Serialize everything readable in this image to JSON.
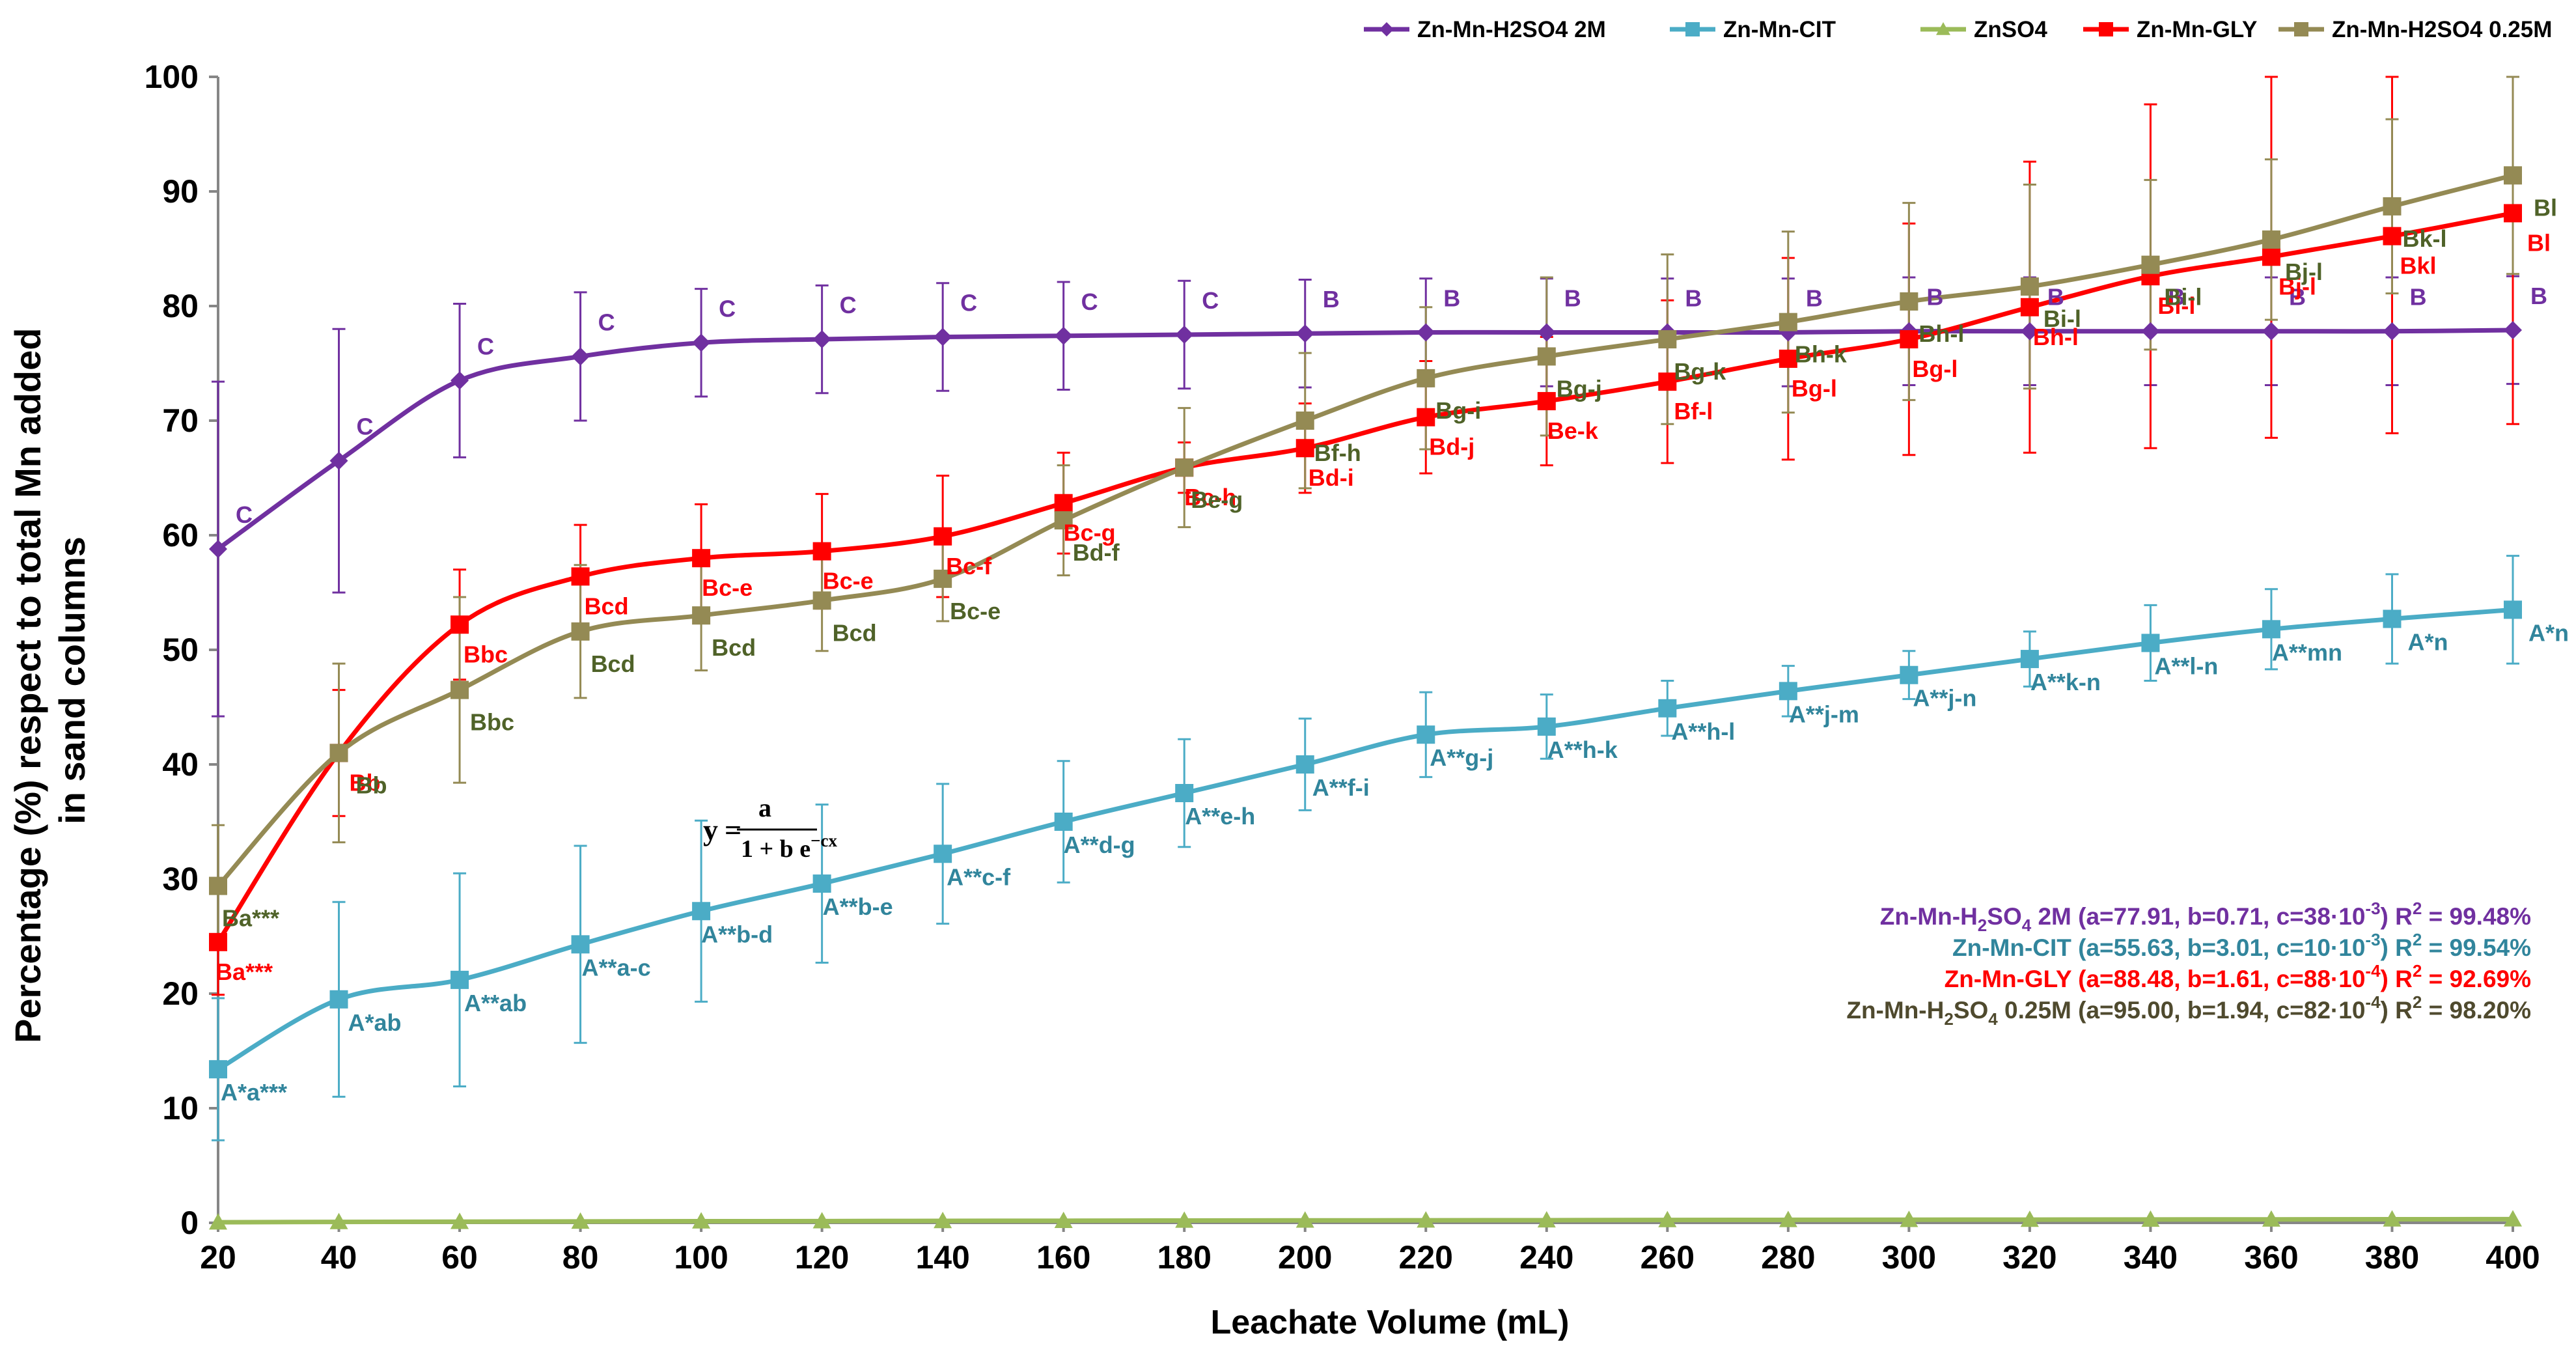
{
  "chart_data": {
    "type": "line",
    "ylabel_line1": "Percentage (%) respect to total Mn added",
    "ylabel_line2": "in sand columns",
    "xlabel": "Leachate Volume (mL)",
    "x": [
      20,
      40,
      60,
      80,
      100,
      120,
      140,
      160,
      180,
      200,
      220,
      240,
      260,
      280,
      300,
      320,
      340,
      360,
      380,
      400
    ],
    "xlim": [
      20,
      400
    ],
    "ylim": [
      0,
      100
    ],
    "yticks": [
      0,
      10,
      20,
      30,
      40,
      50,
      60,
      70,
      80,
      90,
      100
    ],
    "xticks": [
      20,
      40,
      60,
      80,
      100,
      120,
      140,
      160,
      180,
      200,
      220,
      240,
      260,
      280,
      300,
      320,
      340,
      360,
      380,
      400
    ],
    "legend_position": "top",
    "series": [
      {
        "name": "Zn-Mn-H2SO4 2M",
        "color": "#7030A0",
        "marker": "diamond",
        "values": [
          58.8,
          66.5,
          73.5,
          75.6,
          76.8,
          77.1,
          77.3,
          77.4,
          77.5,
          77.6,
          77.7,
          77.7,
          77.7,
          77.7,
          77.8,
          77.8,
          77.8,
          77.8,
          77.8,
          77.9
        ],
        "errors": [
          14.6,
          11.5,
          6.7,
          5.6,
          4.7,
          4.7,
          4.7,
          4.7,
          4.7,
          4.7,
          4.7,
          4.7,
          4.7,
          4.7,
          4.7,
          4.7,
          4.7,
          4.7,
          4.7,
          4.7
        ],
        "labels": [
          "C",
          "C",
          "C",
          "C",
          "C",
          "C",
          "C",
          "C",
          "C",
          "B",
          "B",
          "B",
          "B",
          "B",
          "B",
          "B",
          "B",
          "B",
          "B",
          "B"
        ]
      },
      {
        "name": "Zn-Mn-CIT",
        "color": "#4BACC6",
        "marker": "square",
        "values": [
          13.4,
          19.5,
          21.2,
          24.3,
          27.2,
          29.6,
          32.2,
          35.0,
          37.5,
          40.0,
          42.6,
          43.3,
          44.9,
          46.4,
          47.8,
          49.2,
          50.6,
          51.8,
          52.7,
          53.5
        ],
        "errors": [
          6.2,
          8.5,
          9.3,
          8.6,
          7.9,
          6.9,
          6.1,
          5.3,
          4.7,
          4.0,
          3.7,
          2.8,
          2.4,
          2.2,
          2.1,
          2.4,
          3.3,
          3.5,
          3.9,
          4.7
        ],
        "labels": [
          "A*a***",
          "A*ab",
          "A**ab",
          "A**a-c",
          "A**b-d",
          "A**b-e",
          "A**c-f",
          "A**d-g",
          "A**e-h",
          "A**f-i",
          "A**g-j",
          "A**h-k",
          "A**h-l",
          "A**j-m",
          "A**j-n",
          "A**k-n",
          "A**l-n",
          "A**mn",
          "A*n",
          "A*n"
        ]
      },
      {
        "name": "ZnSO4",
        "color": "#9BBB59",
        "marker": "triangle",
        "values": [
          0.05,
          0.08,
          0.1,
          0.12,
          0.14,
          0.15,
          0.17,
          0.18,
          0.2,
          0.21,
          0.22,
          0.23,
          0.25,
          0.26,
          0.27,
          0.28,
          0.29,
          0.3,
          0.31,
          0.32
        ],
        "errors": [
          0,
          0,
          0,
          0,
          0,
          0,
          0,
          0,
          0,
          0,
          0,
          0,
          0,
          0,
          0,
          0,
          0,
          0,
          0,
          0
        ],
        "labels": []
      },
      {
        "name": "Zn-Mn-GLY",
        "color": "#FF0000",
        "marker": "square",
        "values": [
          24.5,
          41.0,
          52.2,
          56.4,
          58.0,
          58.6,
          59.9,
          62.8,
          65.9,
          67.6,
          70.3,
          71.7,
          73.4,
          75.4,
          77.1,
          79.9,
          82.6,
          84.3,
          86.1,
          88.1
        ],
        "errors": [
          4.6,
          5.5,
          4.8,
          4.5,
          4.7,
          5.0,
          5.3,
          4.4,
          2.2,
          3.9,
          4.9,
          5.6,
          7.1,
          8.8,
          10.1,
          12.7,
          15.0,
          15.8,
          17.2,
          18.4
        ],
        "labels": [
          "Ba***",
          "Bb",
          "Bbc",
          "Bcd",
          "Bc-e",
          "Bc-e",
          "Bc-f",
          "Bc-g",
          "Bc-h",
          "Bd-i",
          "Bd-j",
          "Be-k",
          "Bf-l",
          "Bg-l",
          "Bg-l",
          "Bh-l",
          "Bi-l",
          "Bj-l",
          "Bkl",
          "Bl"
        ]
      },
      {
        "name": "Zn-Mn-H2SO4 0.25M",
        "color": "#948A54",
        "marker": "square",
        "values": [
          29.4,
          41.0,
          46.5,
          51.6,
          53.0,
          54.3,
          56.2,
          61.3,
          65.9,
          70.0,
          73.7,
          75.6,
          77.1,
          78.6,
          80.4,
          81.7,
          83.6,
          85.8,
          88.7,
          91.4
        ],
        "errors": [
          5.3,
          7.8,
          8.1,
          5.8,
          4.8,
          4.4,
          3.7,
          4.8,
          5.2,
          5.9,
          6.2,
          6.9,
          7.4,
          7.9,
          8.6,
          8.9,
          7.4,
          7.0,
          7.6,
          8.6
        ],
        "labels": [
          "Ba***",
          "Bb",
          "Bbc",
          "Bcd",
          "Bcd",
          "Bcd",
          "Bc-e",
          "Bd-f",
          "Be-g",
          "Bf-h",
          "Bg-i",
          "Bg-j",
          "Bg-k",
          "Bh-k",
          "Bh-l",
          "Bi-l",
          "Bi-l",
          "Bj-l",
          "Bk-l",
          "Bl"
        ]
      }
    ],
    "equation": {
      "y": "y",
      "numerator": "a",
      "denominator": "1 + b  e",
      "exponent": "−cx"
    },
    "fits": [
      {
        "name_main": "Zn-Mn-H",
        "name_sub": "2",
        "name_tail": "SO",
        "name_sub2": "4",
        "name_end": " 2M",
        "params": " (a=77.91, b=0.71, c=38·10",
        "c_exp": "-3",
        "r2_pre": ") R",
        "r2_exp": "2",
        "r2_val": " = 99.48%",
        "color": "#7030A0"
      },
      {
        "name_main": "Zn-Mn-CIT",
        "name_sub": "",
        "name_tail": "",
        "name_sub2": "",
        "name_end": "",
        "params": " (a=55.63, b=3.01, c=10·10",
        "c_exp": "-3",
        "r2_pre": ") R",
        "r2_exp": "2",
        "r2_val": " = 99.54%",
        "color": "#31859C"
      },
      {
        "name_main": "Zn-Mn-GLY",
        "name_sub": "",
        "name_tail": "",
        "name_sub2": "",
        "name_end": "",
        "params": " (a=88.48, b=1.61, c=88·10",
        "c_exp": "-4",
        "r2_pre": ") R",
        "r2_exp": "2",
        "r2_val": " = 92.69%",
        "color": "#FF0000"
      },
      {
        "name_main": "Zn-Mn-H",
        "name_sub": "2",
        "name_tail": "SO",
        "name_sub2": "4",
        "name_end": " 0.25M",
        "params": " (a=95.00, b=1.94, c=82·10",
        "c_exp": "-4",
        "r2_pre": ") R",
        "r2_exp": "2",
        "r2_val": " = 98.20%",
        "color": "#4F4A2E"
      }
    ]
  }
}
